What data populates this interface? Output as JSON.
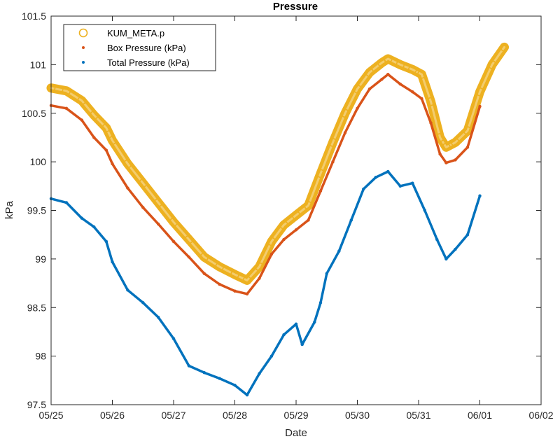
{
  "chart_data": {
    "type": "scatter",
    "title": "Pressure",
    "xlabel": "Date",
    "ylabel": "kPa",
    "xlim": [
      0,
      8
    ],
    "ylim": [
      97.5,
      101.5
    ],
    "x_ticks": [
      0,
      1,
      2,
      3,
      4,
      5,
      6,
      7,
      8
    ],
    "x_tick_labels": [
      "05/25",
      "05/26",
      "05/27",
      "05/28",
      "05/29",
      "05/30",
      "05/31",
      "06/01",
      "06/02"
    ],
    "y_ticks": [
      97.5,
      98,
      98.5,
      99,
      99.5,
      100,
      100.5,
      101,
      101.5
    ],
    "y_tick_labels": [
      "97.5",
      "98",
      "98.5",
      "99",
      "99.5",
      "100",
      "100.5",
      "101",
      "101.5"
    ],
    "x_unit": "days since 05/25",
    "grid": false,
    "legend_position": "top-left",
    "series": [
      {
        "name": "KUM_META.p",
        "marker": "circle",
        "color": "#EDB120",
        "points": [
          [
            0.0,
            100.76
          ],
          [
            0.25,
            100.73
          ],
          [
            0.5,
            100.63
          ],
          [
            0.7,
            100.48
          ],
          [
            0.9,
            100.35
          ],
          [
            1.0,
            100.22
          ],
          [
            1.25,
            99.98
          ],
          [
            1.5,
            99.78
          ],
          [
            1.75,
            99.58
          ],
          [
            2.0,
            99.38
          ],
          [
            2.25,
            99.2
          ],
          [
            2.5,
            99.02
          ],
          [
            2.75,
            98.92
          ],
          [
            3.0,
            98.84
          ],
          [
            3.2,
            98.78
          ],
          [
            3.4,
            98.92
          ],
          [
            3.6,
            99.18
          ],
          [
            3.8,
            99.35
          ],
          [
            4.0,
            99.45
          ],
          [
            4.2,
            99.55
          ],
          [
            4.4,
            99.88
          ],
          [
            4.6,
            100.2
          ],
          [
            4.8,
            100.5
          ],
          [
            5.0,
            100.75
          ],
          [
            5.2,
            100.92
          ],
          [
            5.4,
            101.02
          ],
          [
            5.5,
            101.06
          ],
          [
            5.7,
            101.0
          ],
          [
            5.9,
            100.95
          ],
          [
            6.05,
            100.9
          ],
          [
            6.2,
            100.62
          ],
          [
            6.35,
            100.25
          ],
          [
            6.45,
            100.15
          ],
          [
            6.6,
            100.2
          ],
          [
            6.8,
            100.32
          ],
          [
            7.0,
            100.72
          ],
          [
            7.2,
            101.0
          ],
          [
            7.4,
            101.18
          ]
        ]
      },
      {
        "name": "Box Pressure (kPa)",
        "marker": "dot",
        "color": "#D95319",
        "points": [
          [
            0.0,
            100.58
          ],
          [
            0.25,
            100.55
          ],
          [
            0.5,
            100.43
          ],
          [
            0.7,
            100.25
          ],
          [
            0.9,
            100.12
          ],
          [
            1.0,
            99.98
          ],
          [
            1.25,
            99.73
          ],
          [
            1.5,
            99.53
          ],
          [
            1.75,
            99.36
          ],
          [
            2.0,
            99.18
          ],
          [
            2.25,
            99.02
          ],
          [
            2.5,
            98.85
          ],
          [
            2.75,
            98.74
          ],
          [
            3.0,
            98.67
          ],
          [
            3.2,
            98.64
          ],
          [
            3.4,
            98.8
          ],
          [
            3.6,
            99.05
          ],
          [
            3.8,
            99.2
          ],
          [
            4.0,
            99.3
          ],
          [
            4.2,
            99.4
          ],
          [
            4.4,
            99.7
          ],
          [
            4.6,
            100.0
          ],
          [
            4.8,
            100.3
          ],
          [
            5.0,
            100.55
          ],
          [
            5.2,
            100.75
          ],
          [
            5.4,
            100.85
          ],
          [
            5.5,
            100.9
          ],
          [
            5.7,
            100.8
          ],
          [
            5.9,
            100.72
          ],
          [
            6.05,
            100.65
          ],
          [
            6.2,
            100.4
          ],
          [
            6.35,
            100.08
          ],
          [
            6.45,
            99.99
          ],
          [
            6.6,
            100.02
          ],
          [
            6.8,
            100.15
          ],
          [
            7.0,
            100.57
          ]
        ]
      },
      {
        "name": "Total Pressure (kPa)",
        "marker": "dot",
        "color": "#0072BD",
        "points": [
          [
            0.0,
            99.62
          ],
          [
            0.25,
            99.58
          ],
          [
            0.5,
            99.42
          ],
          [
            0.7,
            99.33
          ],
          [
            0.9,
            99.18
          ],
          [
            1.0,
            98.97
          ],
          [
            1.25,
            98.68
          ],
          [
            1.5,
            98.55
          ],
          [
            1.75,
            98.4
          ],
          [
            2.0,
            98.18
          ],
          [
            2.25,
            97.9
          ],
          [
            2.5,
            97.83
          ],
          [
            2.75,
            97.77
          ],
          [
            3.0,
            97.7
          ],
          [
            3.2,
            97.6
          ],
          [
            3.4,
            97.82
          ],
          [
            3.6,
            98.0
          ],
          [
            3.8,
            98.22
          ],
          [
            4.0,
            98.33
          ],
          [
            4.1,
            98.12
          ],
          [
            4.3,
            98.35
          ],
          [
            4.4,
            98.55
          ],
          [
            4.5,
            98.85
          ],
          [
            4.7,
            99.08
          ],
          [
            4.9,
            99.4
          ],
          [
            5.1,
            99.72
          ],
          [
            5.3,
            99.84
          ],
          [
            5.5,
            99.9
          ],
          [
            5.7,
            99.75
          ],
          [
            5.9,
            99.78
          ],
          [
            6.1,
            99.5
          ],
          [
            6.3,
            99.2
          ],
          [
            6.45,
            99.0
          ],
          [
            6.6,
            99.1
          ],
          [
            6.8,
            99.25
          ],
          [
            7.0,
            99.65
          ]
        ]
      }
    ]
  }
}
